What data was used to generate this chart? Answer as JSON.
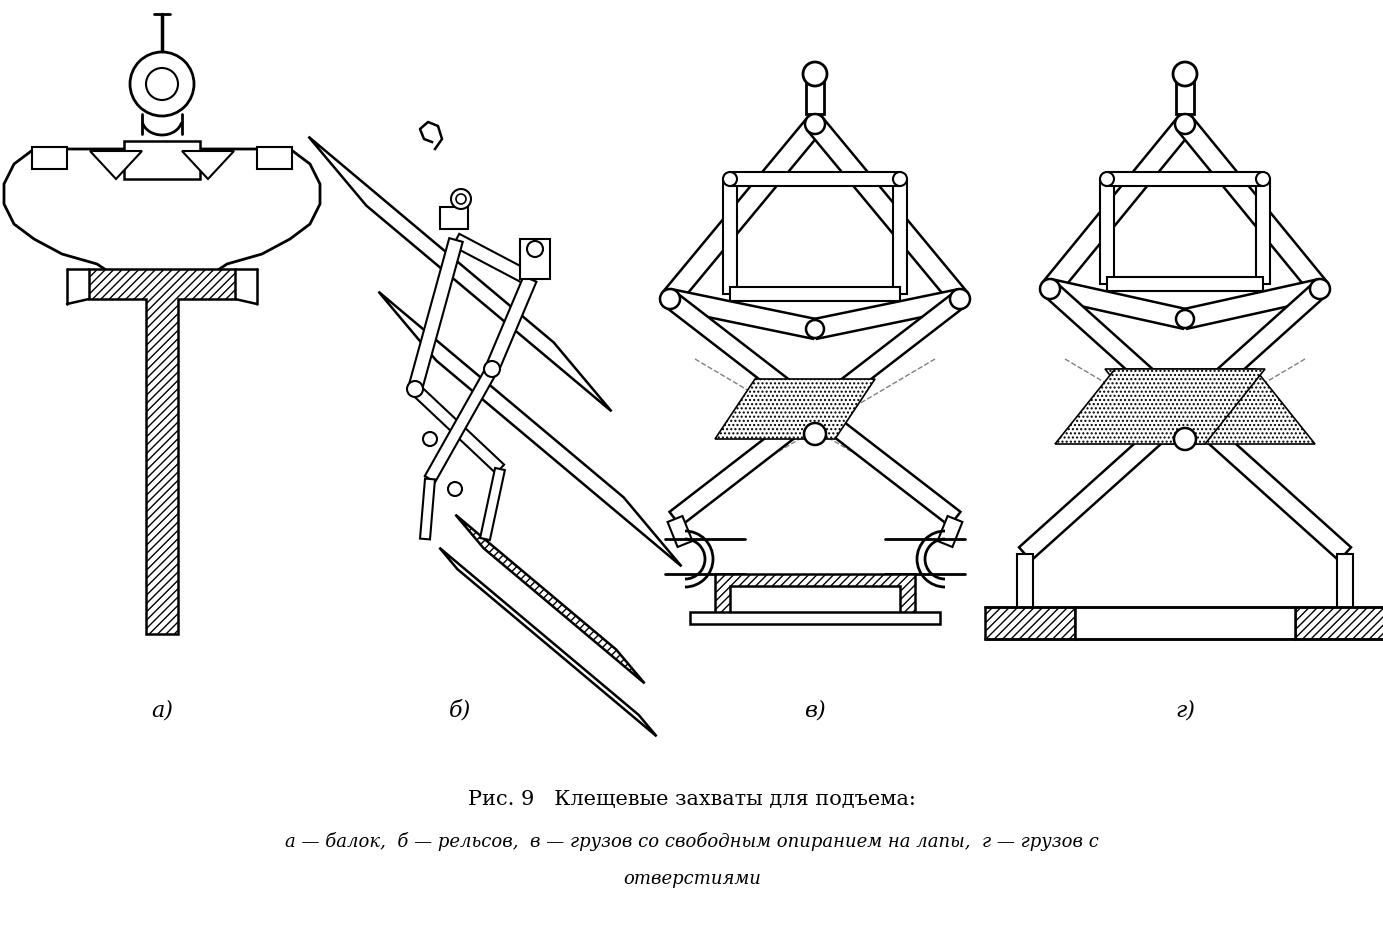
{
  "bg": "#ffffff",
  "lc": "#000000",
  "lw": 1.8,
  "fig_width": 13.83,
  "fig_height": 9.53,
  "caption_line1": "Рис. 9   Клещевые захваты для подъема:",
  "caption_line2": "а — балок,  б — рельсов,  в — грузов со свободным опиранием на лапы,  г — грузов с",
  "caption_line3": "отверстиями",
  "label_a": "а)",
  "label_b": "б)",
  "label_v": "в)",
  "label_g": "г)"
}
